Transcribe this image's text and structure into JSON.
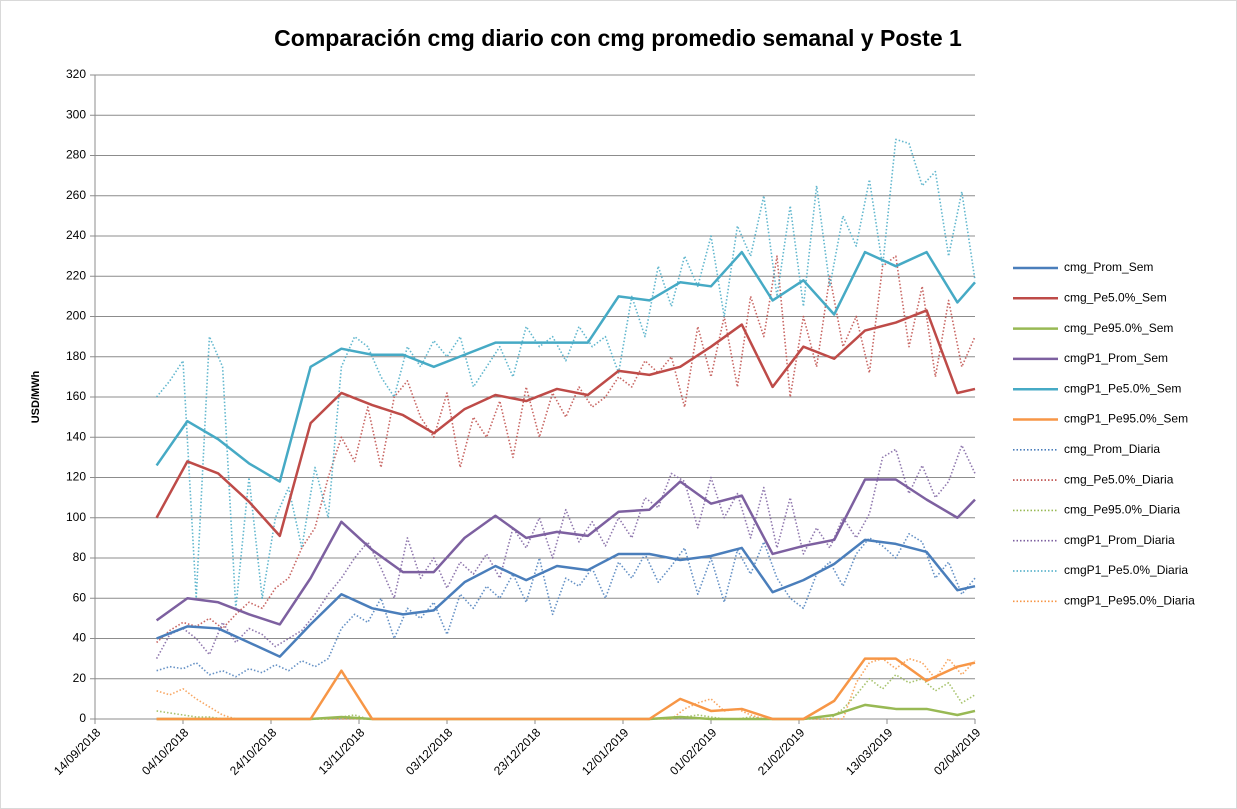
{
  "chart_data": {
    "type": "line",
    "title": "Comparación cmg diario con cmg promedio semanal y Poste 1",
    "y_label": "USD/MWh",
    "ylim": [
      0,
      320
    ],
    "yticks": [
      0,
      20,
      40,
      60,
      80,
      100,
      120,
      140,
      160,
      180,
      200,
      220,
      240,
      260,
      280,
      300,
      320
    ],
    "xlim": [
      "14/09/2018",
      "02/04/2019"
    ],
    "xticks": [
      "14/09/2018",
      "04/10/2018",
      "24/10/2018",
      "13/11/2018",
      "03/12/2018",
      "23/12/2018",
      "12/01/2019",
      "01/02/2019",
      "21/02/2019",
      "13/03/2019",
      "02/04/2019"
    ],
    "grid": true,
    "legend": "right",
    "x": [
      "28/09/2018",
      "05/10/2018",
      "12/10/2018",
      "19/10/2018",
      "26/10/2018",
      "02/11/2018",
      "09/11/2018",
      "16/11/2018",
      "23/11/2018",
      "30/11/2018",
      "07/12/2018",
      "14/12/2018",
      "21/12/2018",
      "28/12/2018",
      "04/01/2019",
      "11/01/2019",
      "18/01/2019",
      "25/01/2019",
      "01/02/2019",
      "08/02/2019",
      "15/02/2019",
      "22/02/2019",
      "01/03/2019",
      "08/03/2019",
      "15/03/2019",
      "22/03/2019",
      "29/03/2019",
      "02/04/2019"
    ],
    "series": [
      {
        "name": "cmg_Prom_Sem",
        "color": "#4a7ebb",
        "values": [
          40,
          46,
          45,
          38,
          31,
          47,
          62,
          55,
          52,
          54,
          68,
          76,
          69,
          76,
          74,
          82,
          82,
          79,
          81,
          85,
          63,
          69,
          77,
          89,
          87,
          83,
          64,
          66
        ]
      },
      {
        "name": "cmg_Pe5.0%_Sem",
        "color": "#be4b48",
        "values": [
          100,
          128,
          122,
          108,
          91,
          147,
          162,
          156,
          151,
          142,
          154,
          161,
          158,
          164,
          161,
          173,
          171,
          175,
          185,
          196,
          165,
          185,
          179,
          193,
          197,
          203,
          162,
          164
        ]
      },
      {
        "name": "cmg_Pe95.0%_Sem",
        "color": "#98b954",
        "values": [
          0,
          0,
          0,
          0,
          0,
          0,
          1,
          0,
          0,
          0,
          0,
          0,
          0,
          0,
          0,
          0,
          0,
          1,
          0,
          0,
          0,
          0,
          2,
          7,
          5,
          5,
          2,
          4
        ]
      },
      {
        "name": "cmgP1_Prom_Sem",
        "color": "#7d60a0",
        "values": [
          49,
          60,
          58,
          52,
          47,
          70,
          98,
          84,
          73,
          73,
          90,
          101,
          90,
          93,
          91,
          103,
          104,
          118,
          107,
          111,
          82,
          86,
          89,
          119,
          119,
          109,
          100,
          109
        ]
      },
      {
        "name": "cmgP1_Pe5.0%_Sem",
        "color": "#46aac5",
        "values": [
          126,
          148,
          139,
          127,
          118,
          175,
          184,
          181,
          181,
          175,
          181,
          187,
          187,
          187,
          187,
          210,
          208,
          217,
          215,
          232,
          208,
          218,
          201,
          232,
          225,
          232,
          207,
          217
        ]
      },
      {
        "name": "cmgP1_Pe95.0%_Sem",
        "color": "#f79646",
        "values": [
          0,
          0,
          0,
          0,
          0,
          0,
          24,
          0,
          0,
          0,
          0,
          0,
          0,
          0,
          0,
          0,
          0,
          10,
          4,
          5,
          0,
          0,
          9,
          30,
          30,
          19,
          26,
          28
        ]
      }
    ],
    "daily_x": [
      "28/09/2018",
      "01/10/2018",
      "04/10/2018",
      "07/10/2018",
      "10/10/2018",
      "13/10/2018",
      "16/10/2018",
      "19/10/2018",
      "22/10/2018",
      "25/10/2018",
      "28/10/2018",
      "31/10/2018",
      "03/11/2018",
      "06/11/2018",
      "09/11/2018",
      "12/11/2018",
      "15/11/2018",
      "18/11/2018",
      "21/11/2018",
      "24/11/2018",
      "27/11/2018",
      "30/11/2018",
      "03/12/2018",
      "06/12/2018",
      "09/12/2018",
      "12/12/2018",
      "15/12/2018",
      "18/12/2018",
      "21/12/2018",
      "24/12/2018",
      "27/12/2018",
      "30/12/2018",
      "02/01/2019",
      "05/01/2019",
      "08/01/2019",
      "11/01/2019",
      "14/01/2019",
      "17/01/2019",
      "20/01/2019",
      "23/01/2019",
      "26/01/2019",
      "29/01/2019",
      "01/02/2019",
      "04/02/2019",
      "07/02/2019",
      "10/02/2019",
      "13/02/2019",
      "16/02/2019",
      "19/02/2019",
      "22/02/2019",
      "25/02/2019",
      "28/02/2019",
      "03/03/2019",
      "06/03/2019",
      "09/03/2019",
      "12/03/2019",
      "15/03/2019",
      "18/03/2019",
      "21/03/2019",
      "24/03/2019",
      "27/03/2019",
      "30/03/2019",
      "02/04/2019"
    ],
    "daily_series": [
      {
        "name": "cmg_Prom_Diaria",
        "color": "#4a7ebb",
        "values": [
          24,
          26,
          25,
          28,
          22,
          24,
          21,
          25,
          23,
          27,
          24,
          29,
          26,
          30,
          45,
          52,
          48,
          60,
          40,
          55,
          50,
          58,
          42,
          62,
          55,
          66,
          60,
          72,
          58,
          80,
          52,
          70,
          66,
          75,
          60,
          78,
          70,
          82,
          68,
          76,
          85,
          62,
          80,
          58,
          84,
          72,
          88,
          70,
          60,
          55,
          72,
          78,
          66,
          82,
          90,
          86,
          80,
          92,
          88,
          70,
          78,
          62,
          70
        ]
      },
      {
        "name": "cmg_Pe5.0%_Diaria",
        "color": "#be4b48",
        "values": [
          38,
          44,
          48,
          46,
          50,
          45,
          52,
          58,
          55,
          65,
          70,
          85,
          95,
          120,
          140,
          128,
          155,
          125,
          160,
          168,
          150,
          140,
          162,
          125,
          150,
          140,
          158,
          130,
          165,
          140,
          162,
          150,
          165,
          155,
          160,
          170,
          165,
          178,
          172,
          180,
          155,
          195,
          170,
          200,
          165,
          210,
          190,
          230,
          160,
          200,
          175,
          220,
          185,
          200,
          172,
          225,
          230,
          185,
          215,
          170,
          208,
          175,
          190
        ]
      },
      {
        "name": "cmg_Pe95.0%_Diaria",
        "color": "#98b954",
        "values": [
          4,
          3,
          2,
          1,
          1,
          0,
          0,
          0,
          0,
          0,
          0,
          0,
          0,
          0,
          1,
          2,
          0,
          0,
          0,
          0,
          0,
          0,
          0,
          0,
          0,
          0,
          0,
          0,
          0,
          0,
          0,
          0,
          0,
          0,
          0,
          0,
          0,
          0,
          0,
          0,
          1,
          2,
          1,
          0,
          0,
          1,
          0,
          0,
          0,
          0,
          0,
          0,
          5,
          12,
          20,
          15,
          22,
          18,
          20,
          14,
          18,
          8,
          12
        ]
      },
      {
        "name": "cmgP1_Prom_Diaria",
        "color": "#7d60a0",
        "values": [
          30,
          42,
          45,
          40,
          32,
          48,
          38,
          45,
          42,
          36,
          40,
          44,
          52,
          62,
          70,
          80,
          88,
          75,
          60,
          90,
          70,
          80,
          65,
          78,
          72,
          82,
          70,
          95,
          85,
          100,
          80,
          104,
          88,
          98,
          86,
          100,
          90,
          110,
          105,
          122,
          118,
          95,
          120,
          100,
          112,
          90,
          115,
          85,
          110,
          82,
          95,
          85,
          100,
          90,
          102,
          130,
          134,
          112,
          126,
          110,
          118,
          136,
          122
        ]
      },
      {
        "name": "cmgP1_Pe5.0%_Diaria",
        "color": "#46aac5",
        "values": [
          160,
          168,
          178,
          60,
          190,
          175,
          55,
          120,
          60,
          100,
          115,
          85,
          125,
          100,
          175,
          190,
          185,
          170,
          160,
          185,
          175,
          188,
          180,
          190,
          165,
          175,
          185,
          170,
          195,
          185,
          190,
          178,
          195,
          185,
          190,
          172,
          210,
          190,
          225,
          205,
          230,
          215,
          240,
          200,
          245,
          230,
          260,
          210,
          255,
          205,
          265,
          215,
          250,
          235,
          268,
          225,
          288,
          286,
          265,
          272,
          230,
          262,
          218
        ]
      },
      {
        "name": "cmgP1_Pe95.0%_Diaria",
        "color": "#f79646",
        "values": [
          14,
          12,
          15,
          10,
          6,
          2,
          0,
          0,
          0,
          0,
          0,
          0,
          0,
          0,
          0,
          0,
          0,
          0,
          0,
          0,
          0,
          0,
          0,
          0,
          0,
          0,
          0,
          0,
          0,
          0,
          0,
          0,
          0,
          0,
          0,
          0,
          0,
          0,
          0,
          0,
          5,
          8,
          10,
          4,
          5,
          2,
          0,
          0,
          0,
          0,
          0,
          0,
          0,
          18,
          28,
          30,
          25,
          30,
          28,
          20,
          30,
          22,
          29
        ]
      }
    ]
  }
}
